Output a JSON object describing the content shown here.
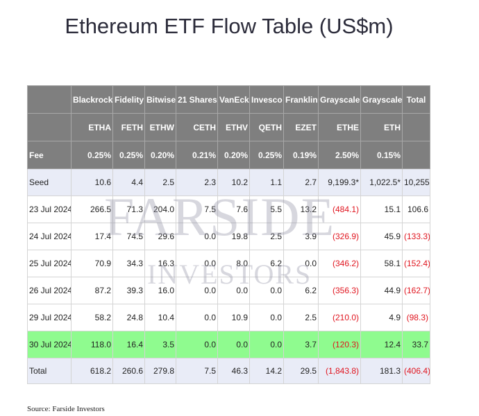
{
  "header": {
    "title": "Ethereum ETF Flow Table (US$m)"
  },
  "table": {
    "columns": [
      {
        "name": "Blackrock",
        "ticker": "ETHA"
      },
      {
        "name": "Fidelity",
        "ticker": "FETH"
      },
      {
        "name": "Bitwise",
        "ticker": "ETHW"
      },
      {
        "name": "21 Shares",
        "ticker": "CETH"
      },
      {
        "name": "VanEck",
        "ticker": "ETHV"
      },
      {
        "name": "Invesco",
        "ticker": "QETH"
      },
      {
        "name": "Franklin",
        "ticker": "EZET"
      },
      {
        "name": "Grayscale",
        "ticker": "ETHE"
      },
      {
        "name": "Grayscale",
        "ticker": "ETH"
      },
      {
        "name": "Total"
      }
    ],
    "header_color": "#7f7f7f",
    "rows": [
      {
        "label": "Fee",
        "values": [
          "0.25%",
          "0.25%",
          "0.20%",
          "0.21%",
          "0.20%",
          "0.25%",
          "0.19%",
          "2.50%",
          "0.15%"
        ],
        "color": "#7f7f7f",
        "bold": true
      },
      {
        "label": "Seed",
        "values": [
          "10.6",
          "4.4",
          "2.5",
          "2.3",
          "10.2",
          "1.1",
          "2.7",
          "9,199.3*",
          "1,022.5*",
          "10,255"
        ],
        "color": "#e9ecf7"
      },
      {
        "label": "23 Jul 2024",
        "values": [
          "266.5",
          "71.3",
          "204.0",
          "7.5",
          "7.6",
          "5.5",
          "13.2",
          "(484.1)",
          "15.1",
          "106.6"
        ]
      },
      {
        "label": "24 Jul 2024",
        "values": [
          "17.4",
          "74.5",
          "29.6",
          "0.0",
          "19.8",
          "2.5",
          "3.9",
          "(326.9)",
          "45.9",
          "(133.3)"
        ]
      },
      {
        "label": "25 Jul 2024",
        "values": [
          "70.9",
          "34.3",
          "16.3",
          "0.0",
          "8.0",
          "6.2",
          "0.0",
          "(346.2)",
          "58.1",
          "(152.4)"
        ]
      },
      {
        "label": "26 Jul 2024",
        "values": [
          "87.2",
          "39.3",
          "16.0",
          "0.0",
          "0.0",
          "0.0",
          "6.2",
          "(356.3)",
          "44.9",
          "(162.7)"
        ]
      },
      {
        "label": "29 Jul 2024",
        "values": [
          "58.2",
          "24.8",
          "10.4",
          "0.0",
          "10.9",
          "0.0",
          "2.5",
          "(210.0)",
          "4.9",
          "(98.3)"
        ]
      },
      {
        "label": "30 Jul 2024",
        "values": [
          "118.0",
          "16.4",
          "3.5",
          "0.0",
          "0.0",
          "0.0",
          "3.7",
          "(120.3)",
          "12.4",
          "33.7"
        ],
        "color": "#8ffb8f"
      },
      {
        "label": "Total",
        "values": [
          "618.2",
          "260.6",
          "279.8",
          "7.5",
          "46.3",
          "14.2",
          "29.5",
          "(1,843.8)",
          "181.3",
          "(406.4)"
        ],
        "color": "#e9ecf7"
      }
    ]
  },
  "watermark": [
    "FARSIDE",
    "INVESTORS"
  ],
  "footer": {
    "source": "Source: Farside Investors"
  }
}
